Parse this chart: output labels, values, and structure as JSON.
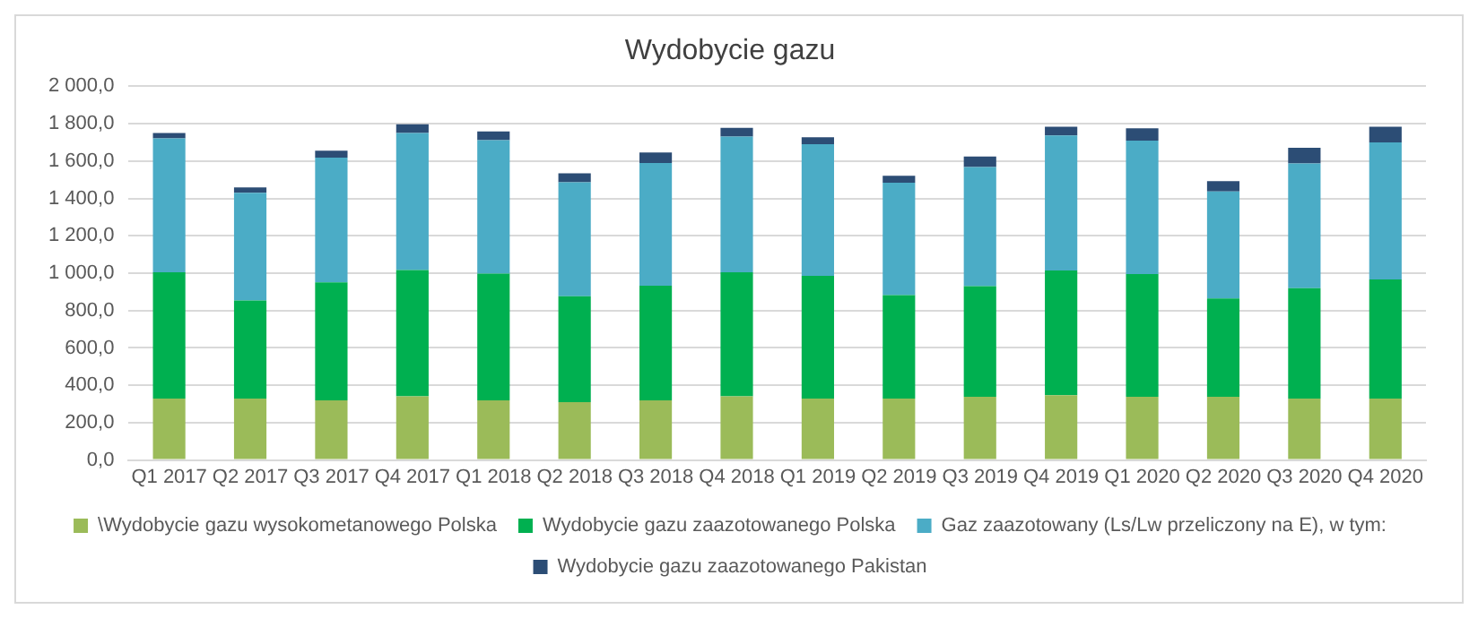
{
  "chart_data": {
    "type": "bar",
    "title": "Wydobycie gazu",
    "stacked": true,
    "categories": [
      "Q1 2017",
      "Q2 2017",
      "Q3 2017",
      "Q4 2017",
      "Q1 2018",
      "Q2 2018",
      "Q3 2018",
      "Q4 2018",
      "Q1 2019",
      "Q2 2019",
      "Q3 2019",
      "Q4 2019",
      "Q1 2020",
      "Q2 2020",
      "Q3 2020",
      "Q4 2020"
    ],
    "series": [
      {
        "name": "\\Wydobycie gazu wysokometanowego Polska",
        "color": "#9bbb59",
        "values": [
          329,
          329,
          319,
          341,
          319,
          310,
          319,
          341,
          329,
          329,
          338,
          347,
          338,
          338,
          329,
          329
        ]
      },
      {
        "name": "Wydobycie gazu zaazotowanego Polska",
        "color": "#00b050",
        "values": [
          676,
          525,
          632,
          676,
          679,
          566,
          614,
          664,
          657,
          554,
          592,
          667,
          657,
          526,
          591,
          638
        ]
      },
      {
        "name": "Gaz zaazotowany (Ls/Lw przeliczony na E), w tym:",
        "color": "#4bacc6",
        "values": [
          716,
          576,
          667,
          733,
          714,
          611,
          657,
          726,
          704,
          601,
          638,
          723,
          714,
          573,
          667,
          733
        ]
      },
      {
        "name": "Wydobycie gazu zaazotowanego Pakistan",
        "color": "#2c4d75",
        "values": [
          29,
          29,
          38,
          47,
          47,
          47,
          56,
          47,
          38,
          37,
          56,
          47,
          66,
          56,
          84,
          84
        ]
      }
    ],
    "ylim": [
      0,
      2000
    ],
    "yticks": [
      {
        "value": 0,
        "label": "0,0"
      },
      {
        "value": 200,
        "label": "200,0"
      },
      {
        "value": 400,
        "label": "400,0"
      },
      {
        "value": 600,
        "label": "600,0"
      },
      {
        "value": 800,
        "label": "800,0"
      },
      {
        "value": 1000,
        "label": "1 000,0"
      },
      {
        "value": 1200,
        "label": "1 200,0"
      },
      {
        "value": 1400,
        "label": "1 400,0"
      },
      {
        "value": 1600,
        "label": "1 600,0"
      },
      {
        "value": 1800,
        "label": "1 800,0"
      },
      {
        "value": 2000,
        "label": "2 000,0"
      }
    ],
    "grid": "y",
    "legend": "bottom"
  }
}
